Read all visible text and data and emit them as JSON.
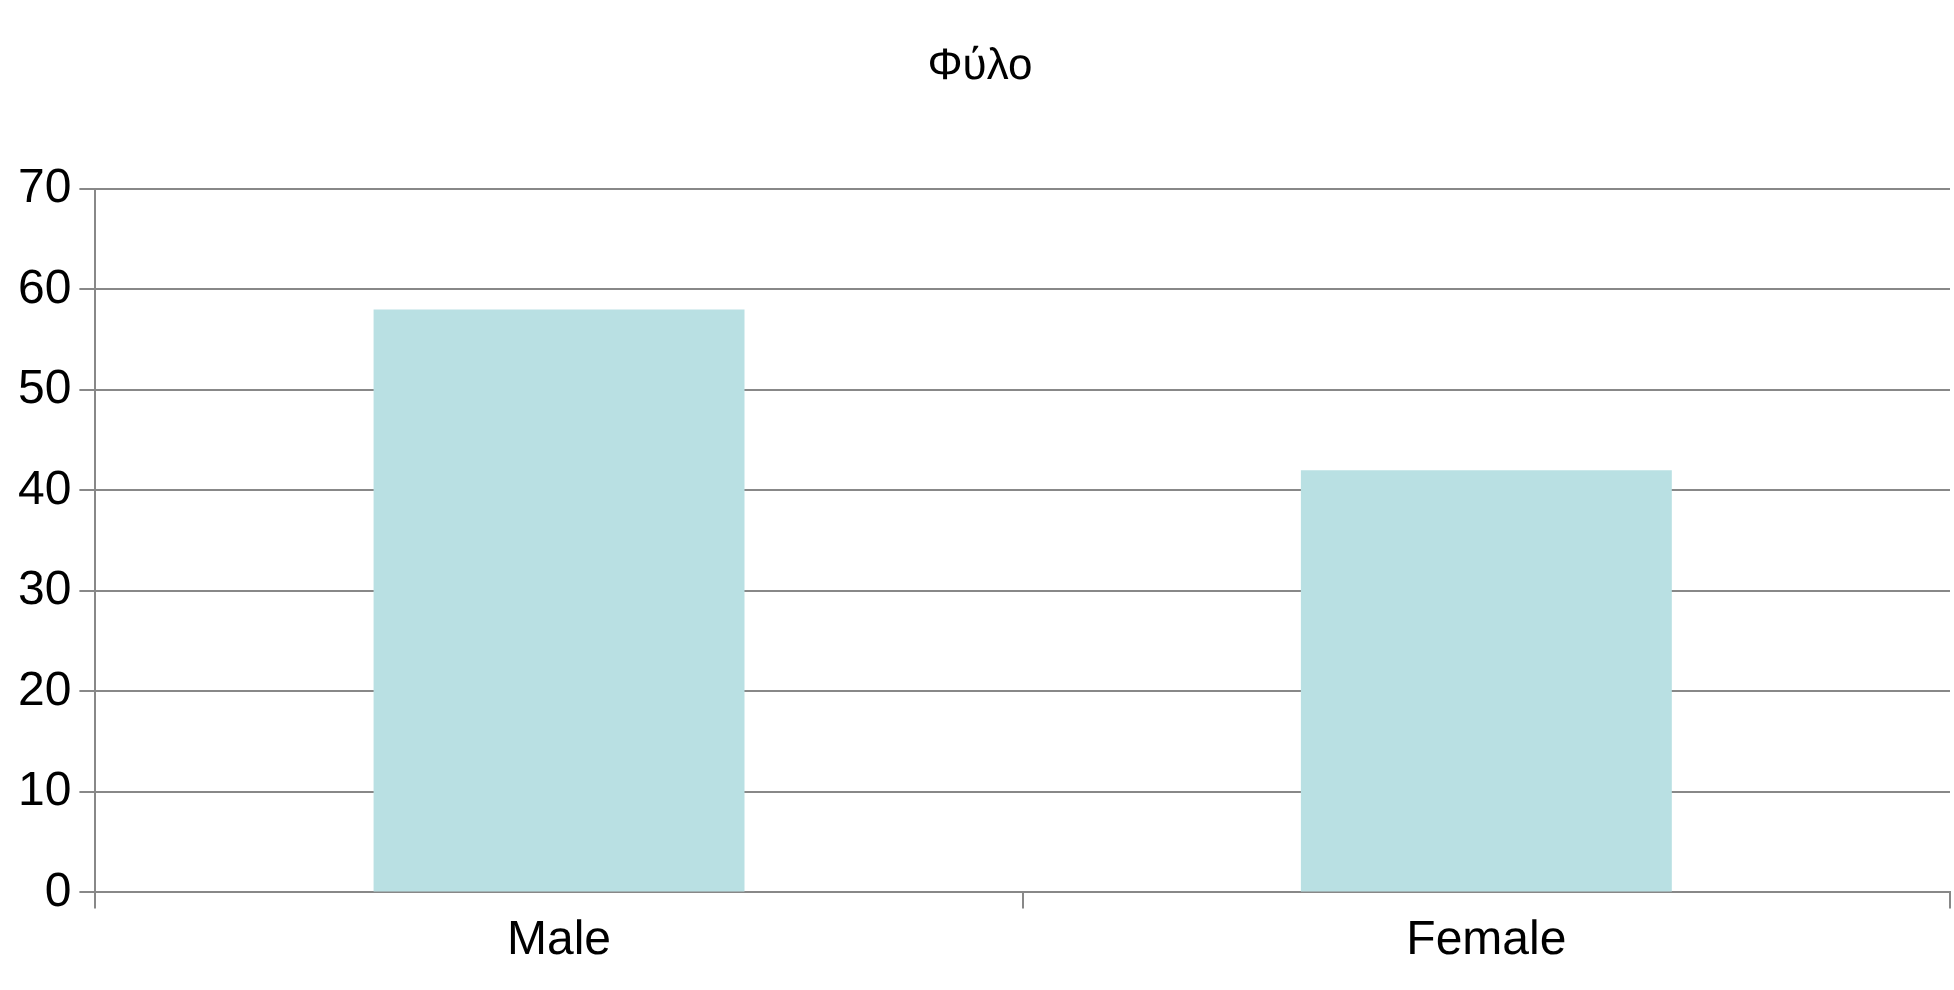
{
  "chart_data": {
    "type": "bar",
    "title": "Φύλο",
    "categories": [
      "Male",
      "Female"
    ],
    "values": [
      58,
      42
    ],
    "color": "#b9e0e3",
    "ylim": [
      0,
      70
    ],
    "yticks": [
      0,
      10,
      20,
      30,
      40,
      50,
      60,
      70
    ],
    "grid": "y"
  }
}
